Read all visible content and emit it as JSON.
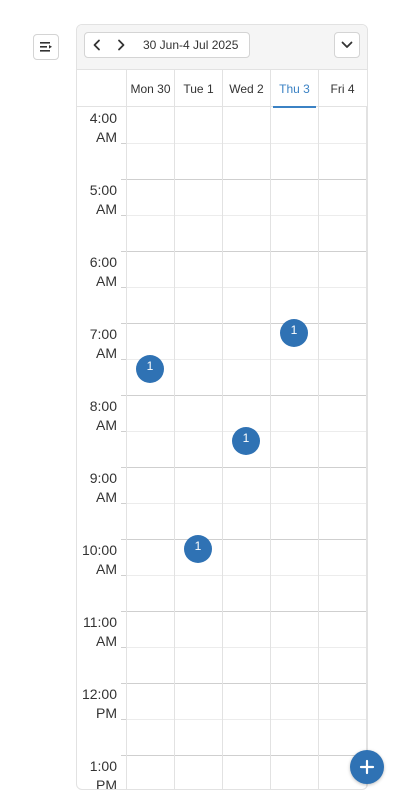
{
  "toolbar": {
    "menu_icon": "menu-lines-icon",
    "prev_icon": "chevron-left-icon",
    "next_icon": "chevron-right-icon",
    "date_range": "30 Jun-4 Jul 2025",
    "view_icon": "chevron-down-icon"
  },
  "days": [
    {
      "label": "Mon 30",
      "today": false
    },
    {
      "label": "Tue 1",
      "today": false
    },
    {
      "label": "Wed 2",
      "today": false
    },
    {
      "label": "Thu 3",
      "today": true
    },
    {
      "label": "Fri 4",
      "today": false
    }
  ],
  "time_slots": [
    {
      "time": "4:00",
      "period": "AM"
    },
    {
      "time": "5:00",
      "period": "AM"
    },
    {
      "time": "6:00",
      "period": "AM"
    },
    {
      "time": "7:00",
      "period": "AM"
    },
    {
      "time": "8:00",
      "period": "AM"
    },
    {
      "time": "9:00",
      "period": "AM"
    },
    {
      "time": "10:00",
      "period": "AM"
    },
    {
      "time": "11:00",
      "period": "AM"
    },
    {
      "time": "12:00",
      "period": "PM"
    },
    {
      "time": "1:00",
      "period": "PM"
    }
  ],
  "events": [
    {
      "day": 0,
      "start_hour": 7.5,
      "count": "1"
    },
    {
      "day": 1,
      "start_hour": 10.0,
      "count": "1"
    },
    {
      "day": 2,
      "start_hour": 8.5,
      "count": "1"
    },
    {
      "day": 3,
      "start_hour": 7.0,
      "count": "1"
    }
  ],
  "first_hour": 4,
  "fab": {
    "icon": "plus-icon"
  },
  "colors": {
    "accent": "#2f72b4",
    "today": "#3b82c4"
  }
}
